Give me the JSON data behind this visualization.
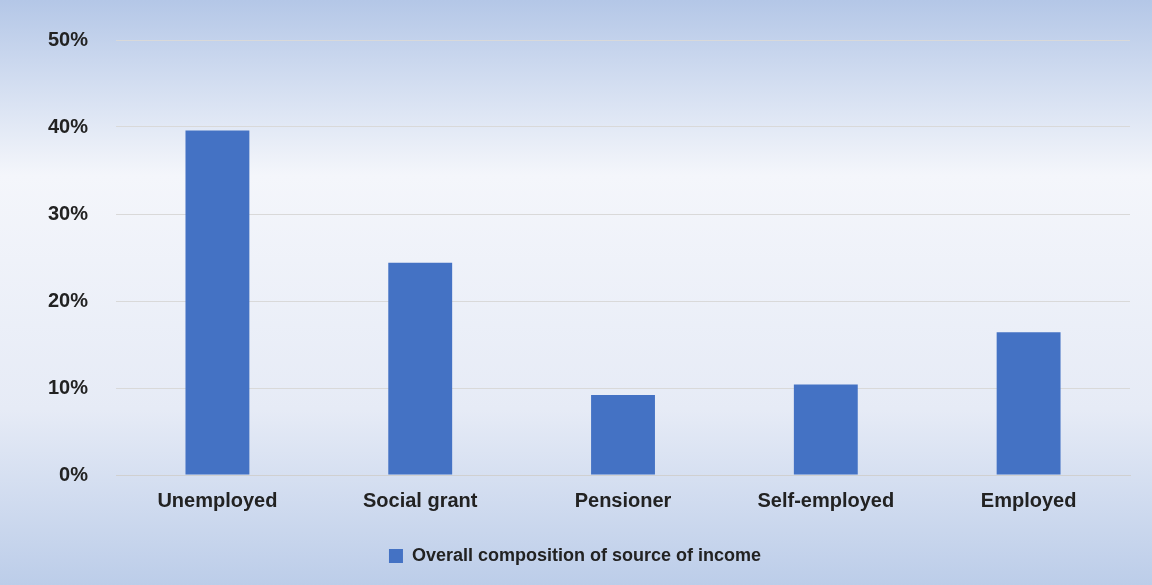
{
  "chart_data": {
    "type": "bar",
    "categories": [
      "Unemployed",
      "Social grant",
      "Pensioner",
      "Self-employed",
      "Employed"
    ],
    "series": [
      {
        "name": "Overall composition of source of income",
        "color": "#4472c4",
        "values": [
          39.6,
          24.4,
          9.2,
          10.4,
          16.4
        ]
      }
    ],
    "ylim": [
      0,
      50
    ],
    "yticks": [
      {
        "value": 0,
        "label": "0%"
      },
      {
        "value": 10,
        "label": "10%"
      },
      {
        "value": 20,
        "label": "20%"
      },
      {
        "value": 30,
        "label": "30%"
      },
      {
        "value": 40,
        "label": "40%"
      },
      {
        "value": 50,
        "label": "50%"
      }
    ],
    "grid": "y",
    "legend": "bottom"
  }
}
